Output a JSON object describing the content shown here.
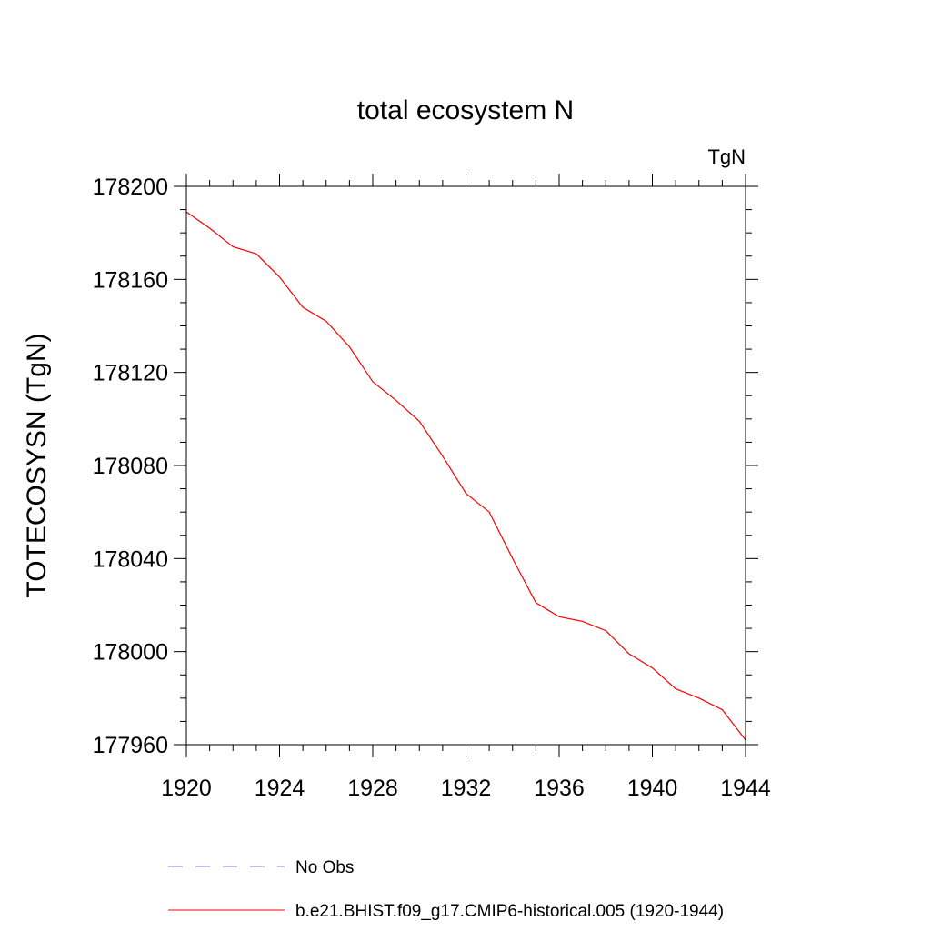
{
  "chart_data": {
    "type": "line",
    "title": "total ecosystem N",
    "units_label": "TgN",
    "xlabel": "",
    "ylabel": "TOTECOSYSN  (TgN)",
    "xlim": [
      1920,
      1944
    ],
    "ylim": [
      177960,
      178200
    ],
    "xticks": [
      1920,
      1924,
      1928,
      1932,
      1936,
      1940,
      1944
    ],
    "yticks": [
      177960,
      178000,
      178040,
      178080,
      178120,
      178160,
      178200
    ],
    "grid": false,
    "legend_position": "bottom",
    "series": [
      {
        "name": "b.e21.BHIST.f09_g17.CMIP6-historical.005 (1920-1944)",
        "color": "#ff0000",
        "dash": "solid",
        "x": [
          1920,
          1921,
          1922,
          1923,
          1924,
          1925,
          1926,
          1927,
          1928,
          1929,
          1930,
          1931,
          1932,
          1933,
          1934,
          1935,
          1936,
          1937,
          1938,
          1939,
          1940,
          1941,
          1942,
          1943,
          1944
        ],
        "y": [
          178189,
          178182,
          178174,
          178171,
          178161,
          178148,
          178142,
          178131,
          178116,
          178108,
          178099,
          178084,
          178068,
          178060,
          178040,
          178021,
          178015,
          178013,
          178009,
          177999,
          177993,
          177984,
          177980,
          177975,
          177962
        ]
      }
    ],
    "legend": [
      {
        "label": "No Obs",
        "color": "#7b7bcc",
        "dash": "dashed"
      },
      {
        "label": "b.e21.BHIST.f09_g17.CMIP6-historical.005 (1920-1944)",
        "color": "#ff0000",
        "dash": "solid"
      }
    ]
  }
}
